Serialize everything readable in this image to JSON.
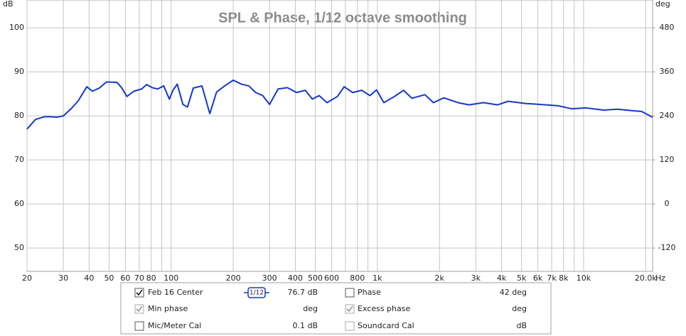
{
  "chart_data": {
    "type": "line",
    "title": "SPL & Phase, 1/12 octave smoothing",
    "y_label": "dB",
    "y2_label": "deg",
    "x_label": "Hz",
    "xscale": "log",
    "grid": true,
    "xlim": [
      20,
      21600
    ],
    "ylim": [
      44.7,
      106.3
    ],
    "y2lim": [
      -183.6,
      555.6
    ],
    "xticks": [
      20,
      30,
      40,
      50,
      60,
      70,
      80,
      100,
      200,
      300,
      400,
      500,
      600,
      800,
      {
        "value": 1000,
        "label": "1k"
      },
      {
        "value": 2000,
        "label": "2k"
      },
      {
        "value": 3000,
        "label": "3k"
      },
      {
        "value": 4000,
        "label": "4k"
      },
      {
        "value": 5000,
        "label": "5k"
      },
      {
        "value": 6000,
        "label": "6k"
      },
      {
        "value": 7000,
        "label": "7k"
      },
      {
        "value": 8000,
        "label": "8k"
      },
      {
        "value": 10000,
        "label": "10k"
      },
      {
        "value": 20000,
        "label": "20.0k"
      }
    ],
    "xminor_ticks": [
      90,
      700,
      900,
      9000
    ],
    "yticks": [
      50,
      60,
      70,
      80,
      90,
      100
    ],
    "y2ticks": [
      -120,
      0,
      120,
      240,
      360,
      480
    ],
    "series": [
      {
        "name": "Feb 16 Center",
        "color": "#1538c8",
        "x": [
          20,
          22,
          24.3,
          26,
          28,
          30,
          32.7,
          35.3,
          39,
          41.5,
          44.8,
          48.6,
          54.7,
          57.7,
          61,
          66,
          72,
          76,
          81,
          86,
          92,
          98,
          102,
          107,
          114,
          120,
          128,
          141,
          154,
          166,
          183,
          200,
          219,
          238,
          257,
          278,
          300,
          330,
          366,
          405,
          447,
          484,
          522,
          570,
          640,
          690,
          760,
          840,
          920,
          990,
          1075,
          1210,
          1340,
          1470,
          1700,
          1870,
          2100,
          2460,
          2780,
          3270,
          3830,
          4300,
          5260,
          6160,
          7500,
          8780,
          10300,
          12500,
          14600,
          17000,
          19100,
          21600
        ],
        "values": [
          77.0,
          79.2,
          79.8,
          79.8,
          79.7,
          80.0,
          81.6,
          83.3,
          86.6,
          85.6,
          86.3,
          87.7,
          87.6,
          86.3,
          84.4,
          85.6,
          86.1,
          87.1,
          86.4,
          86.1,
          86.8,
          83.8,
          85.8,
          87.2,
          82.6,
          82.0,
          86.3,
          86.8,
          80.5,
          85.4,
          86.9,
          88.1,
          87.2,
          86.8,
          85.3,
          84.6,
          82.6,
          86.1,
          86.4,
          85.3,
          85.8,
          83.8,
          84.6,
          83.0,
          84.4,
          86.6,
          85.3,
          85.8,
          84.6,
          85.9,
          83.0,
          84.4,
          85.8,
          84.0,
          84.8,
          83.0,
          84.1,
          83.0,
          82.5,
          83.0,
          82.5,
          83.3,
          82.8,
          82.6,
          82.3,
          81.6,
          81.8,
          81.3,
          81.5,
          81.2,
          81.0,
          79.7
        ]
      }
    ]
  },
  "panel": {
    "rows": [
      {
        "label": "Feb 16 Center",
        "checked": true,
        "enabled": true,
        "smoothing": "1/12",
        "value": "76.7 dB",
        "label2": "Phase",
        "checked2": false,
        "enabled2": true,
        "value2": "42 deg"
      },
      {
        "label": "Min phase",
        "checked": true,
        "enabled": false,
        "value": "deg",
        "label2": "Excess phase",
        "checked2": true,
        "enabled2": false,
        "value2": "deg"
      },
      {
        "label": "Mic/Meter Cal",
        "checked": false,
        "enabled": true,
        "value": "0.1 dB",
        "label2": "Soundcard Cal",
        "checked2": false,
        "enabled2": false,
        "value2": "dB"
      }
    ]
  }
}
